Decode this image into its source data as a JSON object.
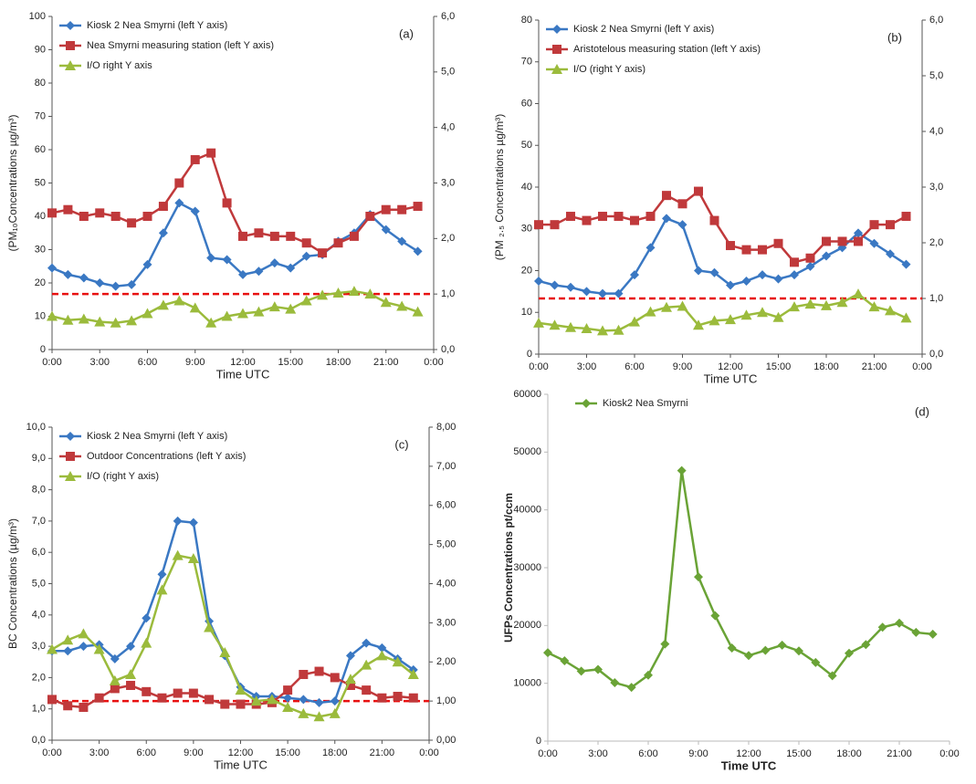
{
  "chart_data": [
    {
      "type": "line",
      "annotation": "(a)",
      "x_label": "Time UTC",
      "y_label": "(PM₁₀Concentrations µg/m³)",
      "x": [
        0,
        1,
        2,
        3,
        4,
        5,
        6,
        7,
        8,
        9,
        10,
        11,
        12,
        13,
        14,
        15,
        16,
        17,
        18,
        19,
        20,
        21,
        22,
        23
      ],
      "xlim": [
        0,
        24
      ],
      "xticks": [
        {
          "value": 0,
          "label": "0:00"
        },
        {
          "value": 3,
          "label": "3:00"
        },
        {
          "value": 6,
          "label": "6:00"
        },
        {
          "value": 9,
          "label": "9:00"
        },
        {
          "value": 12,
          "label": "12:00"
        },
        {
          "value": 15,
          "label": "15:00"
        },
        {
          "value": 18,
          "label": "18:00"
        },
        {
          "value": 21,
          "label": "21:00"
        },
        {
          "value": 24,
          "label": "0:00"
        }
      ],
      "ylim": [
        0,
        100
      ],
      "yticks": [
        0,
        10,
        20,
        30,
        40,
        50,
        60,
        70,
        80,
        90,
        100
      ],
      "y2lim": [
        0,
        6
      ],
      "y2ticks": [
        {
          "value": 0,
          "label": "0,0"
        },
        {
          "value": 1,
          "label": "1,0"
        },
        {
          "value": 2,
          "label": "2,0"
        },
        {
          "value": 3,
          "label": "3,0"
        },
        {
          "value": 4,
          "label": "4,0"
        },
        {
          "value": 5,
          "label": "5,0"
        },
        {
          "value": 6,
          "label": "6,0"
        }
      ],
      "reference_line": {
        "value": 1,
        "axis": "y2",
        "color": "#e81010"
      },
      "legend": "upper left",
      "series": [
        {
          "name": "Kiosk 2 Nea Smyrni (left Y axis)",
          "color": "#3a78c3",
          "marker": "diamond",
          "values": [
            24.5,
            22.5,
            21.5,
            20,
            19,
            19.5,
            25.5,
            35,
            44,
            41.5,
            27.5,
            27,
            22.5,
            23.5,
            26,
            24.5,
            28,
            28.5,
            32.5,
            35,
            40.5,
            36,
            32.5,
            29.5
          ]
        },
        {
          "name": "Nea Smyrni measuring station (left Y axis)",
          "color": "#c0393b",
          "marker": "square",
          "values": [
            41,
            42,
            40,
            41,
            40,
            38,
            40,
            43,
            50,
            57,
            59,
            44,
            34,
            35,
            34,
            34,
            32,
            29,
            32,
            34,
            40,
            42,
            42,
            43
          ]
        },
        {
          "name": "I/O right Y axis",
          "color": "#9bbb3c",
          "marker": "triangle",
          "axis": "y2",
          "values": [
            0.6,
            0.53,
            0.55,
            0.5,
            0.48,
            0.52,
            0.65,
            0.8,
            0.88,
            0.75,
            0.48,
            0.6,
            0.65,
            0.68,
            0.77,
            0.73,
            0.88,
            0.98,
            1.02,
            1.05,
            1.0,
            0.85,
            0.78,
            0.68
          ]
        }
      ]
    },
    {
      "type": "line",
      "annotation": "(b)",
      "x_label": "Time UTC",
      "y_label": "(PM ₂.₅ Concentrations µg/m³)",
      "x": [
        0,
        1,
        2,
        3,
        4,
        5,
        6,
        7,
        8,
        9,
        10,
        11,
        12,
        13,
        14,
        15,
        16,
        17,
        18,
        19,
        20,
        21,
        22,
        23
      ],
      "xlim": [
        0,
        24
      ],
      "xticks": [
        {
          "value": 0,
          "label": "0:00"
        },
        {
          "value": 3,
          "label": "3:00"
        },
        {
          "value": 6,
          "label": "6:00"
        },
        {
          "value": 9,
          "label": "9:00"
        },
        {
          "value": 12,
          "label": "12:00"
        },
        {
          "value": 15,
          "label": "15:00"
        },
        {
          "value": 18,
          "label": "18:00"
        },
        {
          "value": 21,
          "label": "21:00"
        },
        {
          "value": 24,
          "label": "0:00"
        }
      ],
      "ylim": [
        0,
        80
      ],
      "yticks": [
        0,
        10,
        20,
        30,
        40,
        50,
        60,
        70,
        80
      ],
      "y2lim": [
        0,
        6
      ],
      "y2ticks": [
        {
          "value": 0,
          "label": "0,0"
        },
        {
          "value": 1,
          "label": "1,0"
        },
        {
          "value": 2,
          "label": "2,0"
        },
        {
          "value": 3,
          "label": "3,0"
        },
        {
          "value": 4,
          "label": "4,0"
        },
        {
          "value": 5,
          "label": "5,0"
        },
        {
          "value": 6,
          "label": "6,0"
        }
      ],
      "reference_line": {
        "value": 1,
        "axis": "y2",
        "color": "#e81010"
      },
      "legend": "upper left",
      "series": [
        {
          "name": "Kiosk 2 Nea Smyrni (left Y axis)",
          "color": "#3a78c3",
          "marker": "diamond",
          "values": [
            17.5,
            16.5,
            16,
            15,
            14.5,
            14.5,
            19,
            25.5,
            32.5,
            31,
            20,
            19.5,
            16.5,
            17.5,
            19,
            18,
            19,
            21,
            23.5,
            25.5,
            29,
            26.5,
            24,
            21.5
          ]
        },
        {
          "name": "Aristotelous measuring station (left Y axis)",
          "color": "#c0393b",
          "marker": "square",
          "values": [
            31,
            31,
            33,
            32,
            33,
            33,
            32,
            33,
            38,
            36,
            39,
            32,
            26,
            25,
            25,
            26.5,
            22,
            23,
            27,
            27,
            27,
            31,
            31,
            33
          ]
        },
        {
          "name": "I/O (right Y axis)",
          "color": "#9bbb3c",
          "marker": "triangle",
          "axis": "y2",
          "values": [
            0.56,
            0.52,
            0.48,
            0.46,
            0.42,
            0.43,
            0.58,
            0.76,
            0.84,
            0.86,
            0.52,
            0.6,
            0.62,
            0.7,
            0.75,
            0.66,
            0.85,
            0.9,
            0.87,
            0.93,
            1.08,
            0.85,
            0.78,
            0.65
          ]
        }
      ]
    },
    {
      "type": "line",
      "annotation": "(c)",
      "x_label": "Time UTC",
      "y_label": "BC Concentrations (µg/m³)",
      "x": [
        0,
        1,
        2,
        3,
        4,
        5,
        6,
        7,
        8,
        9,
        10,
        11,
        12,
        13,
        14,
        15,
        16,
        17,
        18,
        19,
        20,
        21,
        22,
        23
      ],
      "xlim": [
        0,
        24
      ],
      "xticks": [
        {
          "value": 0,
          "label": "0:00"
        },
        {
          "value": 3,
          "label": "3:00"
        },
        {
          "value": 6,
          "label": "6:00"
        },
        {
          "value": 9,
          "label": "9:00"
        },
        {
          "value": 12,
          "label": "12:00"
        },
        {
          "value": 15,
          "label": "15:00"
        },
        {
          "value": 18,
          "label": "18:00"
        },
        {
          "value": 21,
          "label": "21:00"
        },
        {
          "value": 24,
          "label": "0:00"
        }
      ],
      "ylim": [
        0,
        10
      ],
      "yticks": [
        {
          "value": 0,
          "label": "0,0"
        },
        {
          "value": 1,
          "label": "1,0"
        },
        {
          "value": 2,
          "label": "2,0"
        },
        {
          "value": 3,
          "label": "3,0"
        },
        {
          "value": 4,
          "label": "4,0"
        },
        {
          "value": 5,
          "label": "5,0"
        },
        {
          "value": 6,
          "label": "6,0"
        },
        {
          "value": 7,
          "label": "7,0"
        },
        {
          "value": 8,
          "label": "8,0"
        },
        {
          "value": 9,
          "label": "9,0"
        },
        {
          "value": 10,
          "label": "10,0"
        }
      ],
      "y2lim": [
        0,
        8
      ],
      "y2ticks": [
        {
          "value": 0,
          "label": "0,00"
        },
        {
          "value": 1,
          "label": "1,00"
        },
        {
          "value": 2,
          "label": "2,00"
        },
        {
          "value": 3,
          "label": "3,00"
        },
        {
          "value": 4,
          "label": "4,00"
        },
        {
          "value": 5,
          "label": "5,00"
        },
        {
          "value": 6,
          "label": "6,00"
        },
        {
          "value": 7,
          "label": "7,00"
        },
        {
          "value": 8,
          "label": "8,00"
        }
      ],
      "reference_line": {
        "value": 1,
        "axis": "y2",
        "color": "#e81010"
      },
      "legend": "upper left",
      "series": [
        {
          "name": "Kiosk 2 Nea Smyrni (left Y axis)",
          "color": "#3a78c3",
          "marker": "diamond",
          "values": [
            2.85,
            2.85,
            3.0,
            3.05,
            2.6,
            3.0,
            3.9,
            5.3,
            7.0,
            6.95,
            3.8,
            2.7,
            1.7,
            1.4,
            1.4,
            1.35,
            1.3,
            1.2,
            1.25,
            2.7,
            3.1,
            2.95,
            2.6,
            2.25
          ]
        },
        {
          "name": "Outdoor Concentrations (left Y axis)",
          "color": "#c0393b",
          "marker": "square",
          "values": [
            1.3,
            1.1,
            1.05,
            1.35,
            1.65,
            1.75,
            1.55,
            1.35,
            1.5,
            1.5,
            1.3,
            1.15,
            1.15,
            1.15,
            1.2,
            1.6,
            2.1,
            2.2,
            2.0,
            1.75,
            1.6,
            1.35,
            1.4,
            1.35
          ]
        },
        {
          "name": "I/O (right Y axis)",
          "color": "#9bbb3c",
          "marker": "triangle",
          "axis": "y2",
          "values": [
            2.32,
            2.56,
            2.72,
            2.32,
            1.52,
            1.68,
            2.48,
            3.84,
            4.72,
            4.64,
            2.88,
            2.24,
            1.28,
            1.0,
            1.04,
            0.84,
            0.68,
            0.6,
            0.68,
            1.56,
            1.92,
            2.16,
            2.0,
            1.68
          ]
        }
      ]
    },
    {
      "type": "line",
      "annotation": "(d)",
      "x_label": "Time UTC",
      "y_label": "UFPs Concentrations pt/ccm",
      "x": [
        0,
        1,
        2,
        3,
        4,
        5,
        6,
        7,
        8,
        9,
        10,
        11,
        12,
        13,
        14,
        15,
        16,
        17,
        18,
        19,
        20,
        21,
        22,
        23
      ],
      "xlim": [
        0,
        24
      ],
      "xticks": [
        {
          "value": 0,
          "label": "0:00"
        },
        {
          "value": 3,
          "label": "3:00"
        },
        {
          "value": 6,
          "label": "6:00"
        },
        {
          "value": 9,
          "label": "9:00"
        },
        {
          "value": 12,
          "label": "12:00"
        },
        {
          "value": 15,
          "label": "15:00"
        },
        {
          "value": 18,
          "label": "18:00"
        },
        {
          "value": 21,
          "label": "21:00"
        },
        {
          "value": 24,
          "label": "0:00"
        }
      ],
      "ylim": [
        0,
        60000
      ],
      "yticks": [
        0,
        10000,
        20000,
        30000,
        40000,
        50000,
        60000
      ],
      "legend": "upper left",
      "series": [
        {
          "name": "Kiosk2 Nea Smyrni",
          "color": "#6aa336",
          "marker": "diamond",
          "values": [
            15300,
            13900,
            12100,
            12400,
            10100,
            9300,
            11400,
            16800,
            46800,
            28400,
            21700,
            16100,
            14800,
            15700,
            16600,
            15600,
            13600,
            11300,
            15200,
            16700,
            19700,
            20400,
            18800,
            18500
          ]
        }
      ]
    }
  ]
}
